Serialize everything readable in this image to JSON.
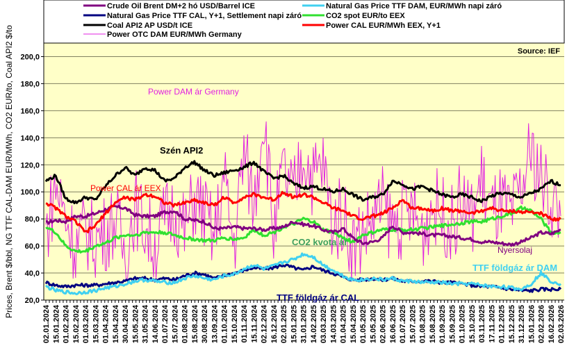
{
  "chart_data": {
    "type": "line",
    "title": "",
    "source": "Source:  IEF",
    "ylabel": "Prices, Brent $/bbl, NG TTF CAL-DAM EUR/MWh, CO2 EUR/to, Coal API2 $/to",
    "xlabel": "",
    "ylim": [
      20,
      210
    ],
    "yticks": [
      "20,0",
      "40,0",
      "60,0",
      "80,0",
      "100,0",
      "120,0",
      "140,0",
      "160,0",
      "180,0",
      "200,0"
    ],
    "ytick_values": [
      20,
      40,
      60,
      80,
      100,
      120,
      140,
      160,
      180,
      200
    ],
    "grid": true,
    "legend_position": "top",
    "xticks": [
      "02.01.2024",
      "15.01.2024",
      "01.02.2024",
      "15.02.2024",
      "01.03.2024",
      "15.03.2024",
      "01.04.2024",
      "15.04.2024",
      "30.04.2024",
      "15.05.2024",
      "31.05.2024",
      "14.06.2024",
      "01.07.2024",
      "15.07.2024",
      "01.08.2024",
      "15.08.2024",
      "30.08.2024",
      "13.09.2024",
      "01.10.2024",
      "15.10.2024",
      "01.11.2024",
      "15.11.2024",
      "02.12.2024",
      "16.12.2024",
      "02.01.2025",
      "15.01.2025",
      "31.01.2025",
      "14.02.2025",
      "03.03.2025",
      "14.03.2025",
      "01.04.2025",
      "15.04.2025",
      "01.05.2025",
      "15.05.2025",
      "02.06.2025",
      "16.06.2025",
      "01.07.2025",
      "15.07.2025",
      "01.08.2025",
      "15.08.2025",
      "01.09.2025",
      "15.09.2025",
      "01.10.2025",
      "15.10.2025",
      "03.11.2025",
      "17.11.2025",
      "01.12.2025",
      "15.12.2025",
      "31.12.2025",
      "15.01.2026",
      "02.02.2026",
      "16.02.2026",
      "02.03.2026"
    ],
    "series": [
      {
        "name": "Crude Oil Brent DM+2 hó USD/Barrel ICE",
        "color": "#800080",
        "width": 3,
        "values": [
          77,
          79,
          78,
          82,
          82,
          84,
          87,
          89,
          88,
          83,
          82,
          82,
          85,
          86,
          80,
          79,
          78,
          73,
          73,
          74,
          73,
          73,
          72,
          73,
          74,
          78,
          76,
          75,
          72,
          70,
          73,
          66,
          62,
          63,
          66,
          75,
          70,
          70,
          69,
          68,
          68,
          67,
          66,
          65,
          63,
          63,
          62,
          61,
          63,
          66,
          70,
          69,
          72
        ]
      },
      {
        "name": "Natural Gas Price TTF CAL, Y+1, Settlement napi záró",
        "color": "#000080",
        "width": 3,
        "values": [
          33,
          31,
          30,
          31,
          31,
          31,
          32,
          33,
          34,
          36,
          36,
          35,
          36,
          35,
          38,
          40,
          39,
          36,
          38,
          40,
          42,
          44,
          43,
          44,
          46,
          44,
          42,
          45,
          42,
          40,
          37,
          35,
          35,
          36,
          35,
          36,
          34,
          34,
          34,
          34,
          33,
          33,
          32,
          31,
          30,
          30,
          29,
          28,
          27,
          27,
          28,
          28,
          28
        ]
      },
      {
        "name": "Coal API2 AP USD/t ICE",
        "color": "#000000",
        "width": 3,
        "values": [
          108,
          112,
          95,
          92,
          96,
          94,
          104,
          112,
          118,
          112,
          118,
          116,
          108,
          110,
          118,
          122,
          116,
          112,
          114,
          116,
          118,
          122,
          115,
          110,
          112,
          106,
          103,
          104,
          102,
          100,
          102,
          98,
          94,
          96,
          98,
          108,
          106,
          102,
          104,
          101,
          98,
          96,
          98,
          96,
          93,
          97,
          99,
          98,
          96,
          99,
          102,
          108,
          105
        ]
      },
      {
        "name": "Power OTC DAM EUR/MWh Germany",
        "color": "#E020E0",
        "width": 1,
        "values": [
          70,
          105,
          82,
          60,
          72,
          65,
          70,
          80,
          55,
          90,
          75,
          60,
          80,
          88,
          70,
          95,
          85,
          65,
          110,
          60,
          130,
          90,
          160,
          70,
          115,
          95,
          130,
          110,
          120,
          75,
          85,
          60,
          70,
          80,
          90,
          75,
          80,
          85,
          70,
          90,
          85,
          75,
          95,
          80,
          110,
          85,
          90,
          80,
          100,
          130,
          110,
          95,
          82
        ]
      },
      {
        "name": "Natural Gas Price TTF DAM, EUR/MWh napi záró",
        "color": "#40D0F0",
        "width": 3,
        "values": [
          30,
          27,
          26,
          25,
          26,
          27,
          29,
          30,
          32,
          34,
          35,
          34,
          33,
          33,
          36,
          38,
          36,
          35,
          38,
          39,
          43,
          46,
          43,
          45,
          48,
          50,
          54,
          52,
          46,
          42,
          38,
          35,
          35,
          36,
          35,
          36,
          34,
          34,
          33,
          33,
          33,
          32,
          32,
          32,
          31,
          30,
          30,
          29,
          28,
          32,
          40,
          34,
          32
        ]
      },
      {
        "name": "CO2 spot EUR/to EEX",
        "color": "#30E030",
        "width": 3,
        "values": [
          74,
          70,
          60,
          56,
          56,
          60,
          62,
          66,
          68,
          68,
          70,
          70,
          70,
          68,
          66,
          65,
          64,
          64,
          66,
          65,
          66,
          72,
          68,
          70,
          74,
          76,
          80,
          78,
          72,
          70,
          66,
          63,
          68,
          70,
          72,
          72,
          72,
          72,
          73,
          74,
          75,
          76,
          77,
          78,
          78,
          80,
          82,
          84,
          88,
          86,
          80,
          70,
          70
        ]
      },
      {
        "name": "Power CAL EUR/MWh EEX, Y+1",
        "color": "#FF0000",
        "width": 3,
        "values": [
          92,
          88,
          82,
          78,
          70,
          75,
          84,
          92,
          96,
          94,
          98,
          97,
          92,
          90,
          92,
          94,
          92,
          90,
          96,
          92,
          96,
          98,
          96,
          94,
          100,
          96,
          98,
          96,
          92,
          88,
          86,
          82,
          80,
          82,
          84,
          88,
          94,
          88,
          88,
          86,
          88,
          86,
          86,
          84,
          86,
          88,
          86,
          86,
          85,
          85,
          84,
          80,
          80
        ]
      }
    ],
    "annotations": [
      {
        "text": "Power DAM  ár Germany",
        "color": "#E020E0"
      },
      {
        "text": "Szén API2",
        "color": "#000000"
      },
      {
        "text": "Power CAL ár EEX",
        "color": "#FF0000"
      },
      {
        "text": "CO2 kvota ár",
        "color": "#40A060"
      },
      {
        "text": "TTF földgáz ár CAL",
        "color": "#000080"
      },
      {
        "text": "Nyersolaj",
        "color": "#800080"
      },
      {
        "text": "TTF földgáz ár DAM",
        "color": "#40D0F0"
      }
    ]
  },
  "colors": {
    "plot_bg": "#FFFFC8",
    "grid": "#808060"
  }
}
